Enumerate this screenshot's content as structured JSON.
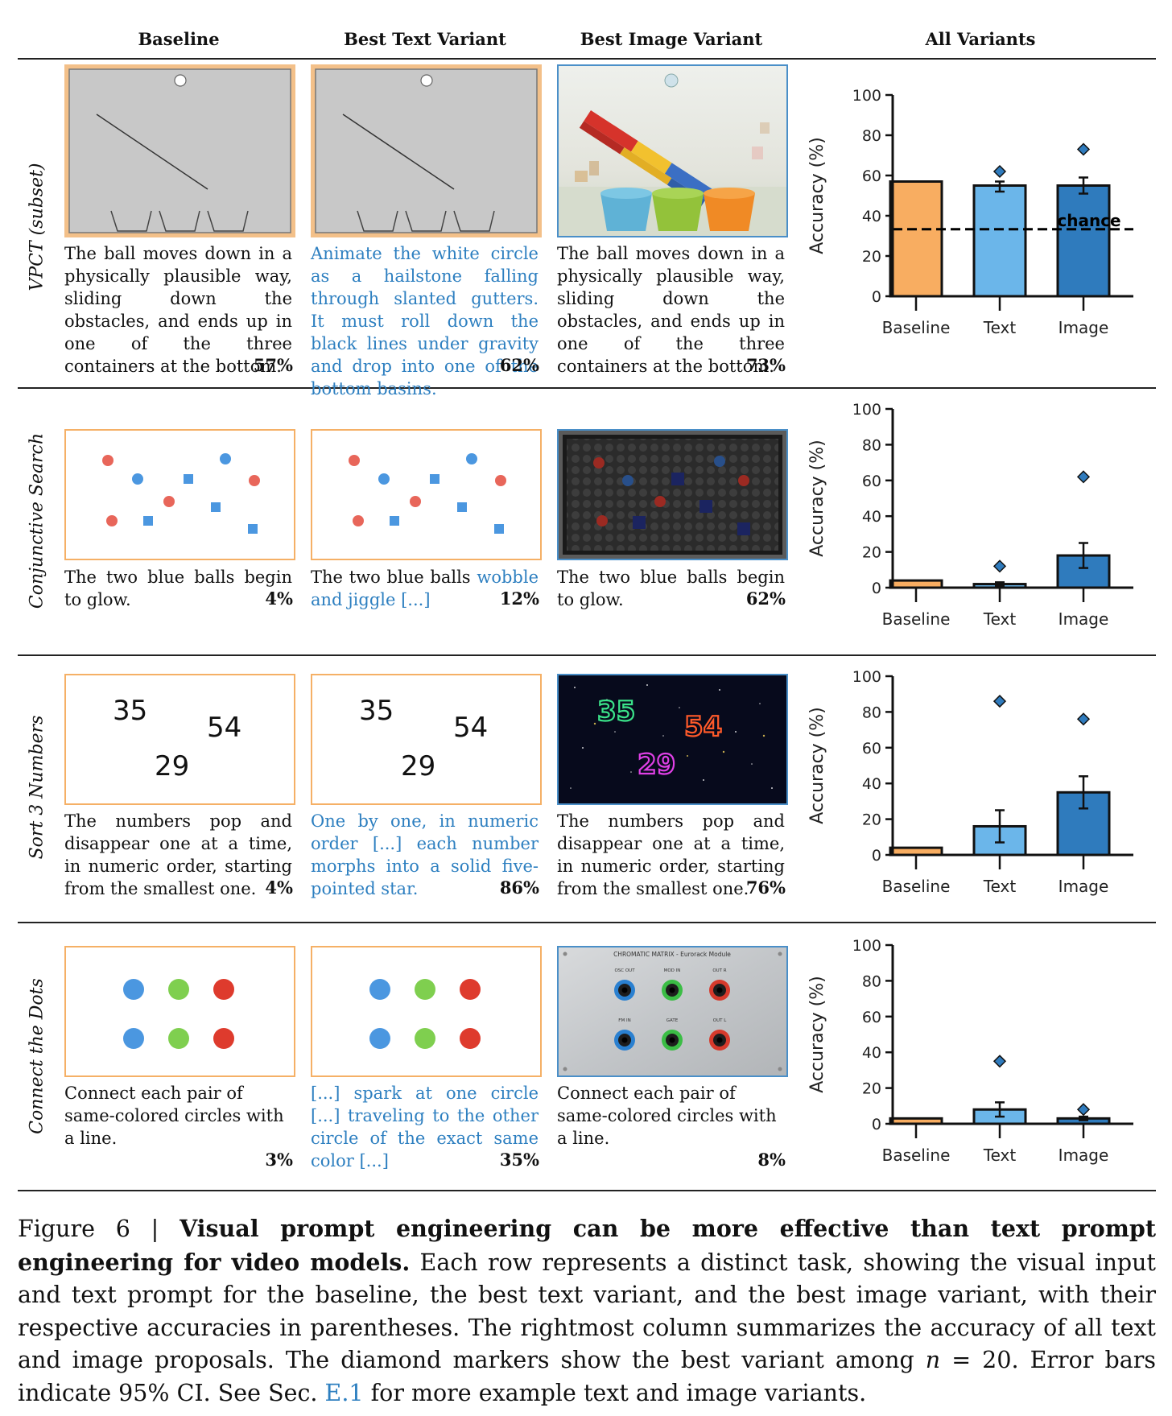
{
  "columns": [
    "Baseline",
    "Best Text Variant",
    "Best Image Variant",
    "All Variants"
  ],
  "rows": [
    {
      "label": "VPCT (subset)",
      "baseline": {
        "text": "The ball moves down in a physically plausible way, sliding down the obstacles, and ends up in one of the three containers at the bottom.",
        "pct": "57%"
      },
      "text_variant": {
        "text": "Animate the white circle as a hailstone falling through slanted gutters. It must roll down the black lines under gravity and drop into one of the bottom basins.",
        "pct": "62%"
      },
      "image_variant": {
        "text": "The ball moves down in a physically plausible way, sliding down the obstacles, and ends up in one of the three containers at the bottom.",
        "pct": "73%"
      }
    },
    {
      "label": "Conjunctive Search",
      "baseline": {
        "text": "The two blue balls begin to glow.",
        "pct": "4%"
      },
      "text_variant": {
        "text_a": "The two blue balls ",
        "text_b": "wobble and jiggle [...]",
        "pct": "12%"
      },
      "image_variant": {
        "text": "The two blue balls begin to glow.",
        "pct": "62%"
      }
    },
    {
      "label": "Sort 3 Numbers",
      "baseline": {
        "text": "The numbers pop and disappear one at a time, in numeric order, starting from the smallest one.",
        "pct": "4%"
      },
      "text_variant": {
        "text": "One by one, in numeric order [...] each number morphs into a solid five-pointed star.",
        "pct": "86%"
      },
      "image_variant": {
        "text": "The numbers pop and disappear one at a time, in numeric order, starting from the smallest one.",
        "pct": "76%"
      }
    },
    {
      "label": "Connect the Dots",
      "baseline": {
        "text": "Connect each pair of same-colored circles with a line.",
        "pct": "3%"
      },
      "text_variant": {
        "text": "[...] spark at one circle [...] traveling to the other circle of the exact same color [...]",
        "pct": "35%"
      },
      "image_variant": {
        "text": "Connect each pair of same-colored circles with a line.",
        "pct": "8%"
      }
    }
  ],
  "numbers": [
    "35",
    "54",
    "29"
  ],
  "module": {
    "title": "CHROMATIC MATRIX - Eurorack Module",
    "jacks_top": [
      "OSC OUT",
      "MOD IN",
      "OUT R"
    ],
    "jacks_bottom": [
      "FM IN",
      "GATE",
      "OUT L"
    ]
  },
  "colors": {
    "baseline": "#f8ad61",
    "text": "#6bb6ea",
    "image": "#2f7bbd",
    "caption_blue": "#2d7fc0",
    "panel_border": "#f5b066"
  },
  "chart_data": [
    {
      "type": "bar",
      "task": "VPCT (subset)",
      "ylabel": "Accuracy (%)",
      "ylim": [
        0,
        100
      ],
      "yticks": [
        0,
        20,
        40,
        60,
        80,
        100
      ],
      "categories": [
        "Baseline",
        "Text",
        "Image"
      ],
      "values": [
        57,
        55,
        55
      ],
      "ci_low": [
        null,
        52,
        51
      ],
      "ci_high": [
        null,
        57,
        59
      ],
      "best": [
        null,
        62,
        73
      ],
      "chance": 33.3,
      "chance_label": "chance"
    },
    {
      "type": "bar",
      "task": "Conjunctive Search",
      "ylabel": "Accuracy (%)",
      "ylim": [
        0,
        100
      ],
      "yticks": [
        0,
        20,
        40,
        60,
        80,
        100
      ],
      "categories": [
        "Baseline",
        "Text",
        "Image"
      ],
      "values": [
        4,
        2,
        18
      ],
      "ci_low": [
        null,
        1,
        11
      ],
      "ci_high": [
        null,
        3,
        25
      ],
      "best": [
        null,
        12,
        62
      ]
    },
    {
      "type": "bar",
      "task": "Sort 3 Numbers",
      "ylabel": "Accuracy (%)",
      "ylim": [
        0,
        100
      ],
      "yticks": [
        0,
        20,
        40,
        60,
        80,
        100
      ],
      "categories": [
        "Baseline",
        "Text",
        "Image"
      ],
      "values": [
        4,
        16,
        35
      ],
      "ci_low": [
        null,
        7,
        26
      ],
      "ci_high": [
        null,
        25,
        44
      ],
      "best": [
        null,
        86,
        76
      ]
    },
    {
      "type": "bar",
      "task": "Connect the Dots",
      "ylabel": "Accuracy (%)",
      "ylim": [
        0,
        100
      ],
      "yticks": [
        0,
        20,
        40,
        60,
        80,
        100
      ],
      "categories": [
        "Baseline",
        "Text",
        "Image"
      ],
      "values": [
        3,
        8,
        3
      ],
      "ci_low": [
        null,
        4,
        2
      ],
      "ci_high": [
        null,
        12,
        4
      ],
      "best": [
        null,
        35,
        8
      ]
    }
  ],
  "caption": {
    "prefix": "Figure 6 | ",
    "bold": "Visual prompt engineering can be more effective than text prompt engineering for video models.",
    "body1": " Each row represents a distinct task, showing the visual input and text prompt for the baseline, the best text variant, and the best image variant, with their respective accuracies in parentheses. The rightmost column summarizes the accuracy of all text and image proposals. The diamond markers show the best variant among ",
    "n": "n",
    "body2": " = 20. Error bars indicate 95% CI. See Sec. ",
    "ref": "E.1",
    "body3": " for more example text and image variants."
  }
}
